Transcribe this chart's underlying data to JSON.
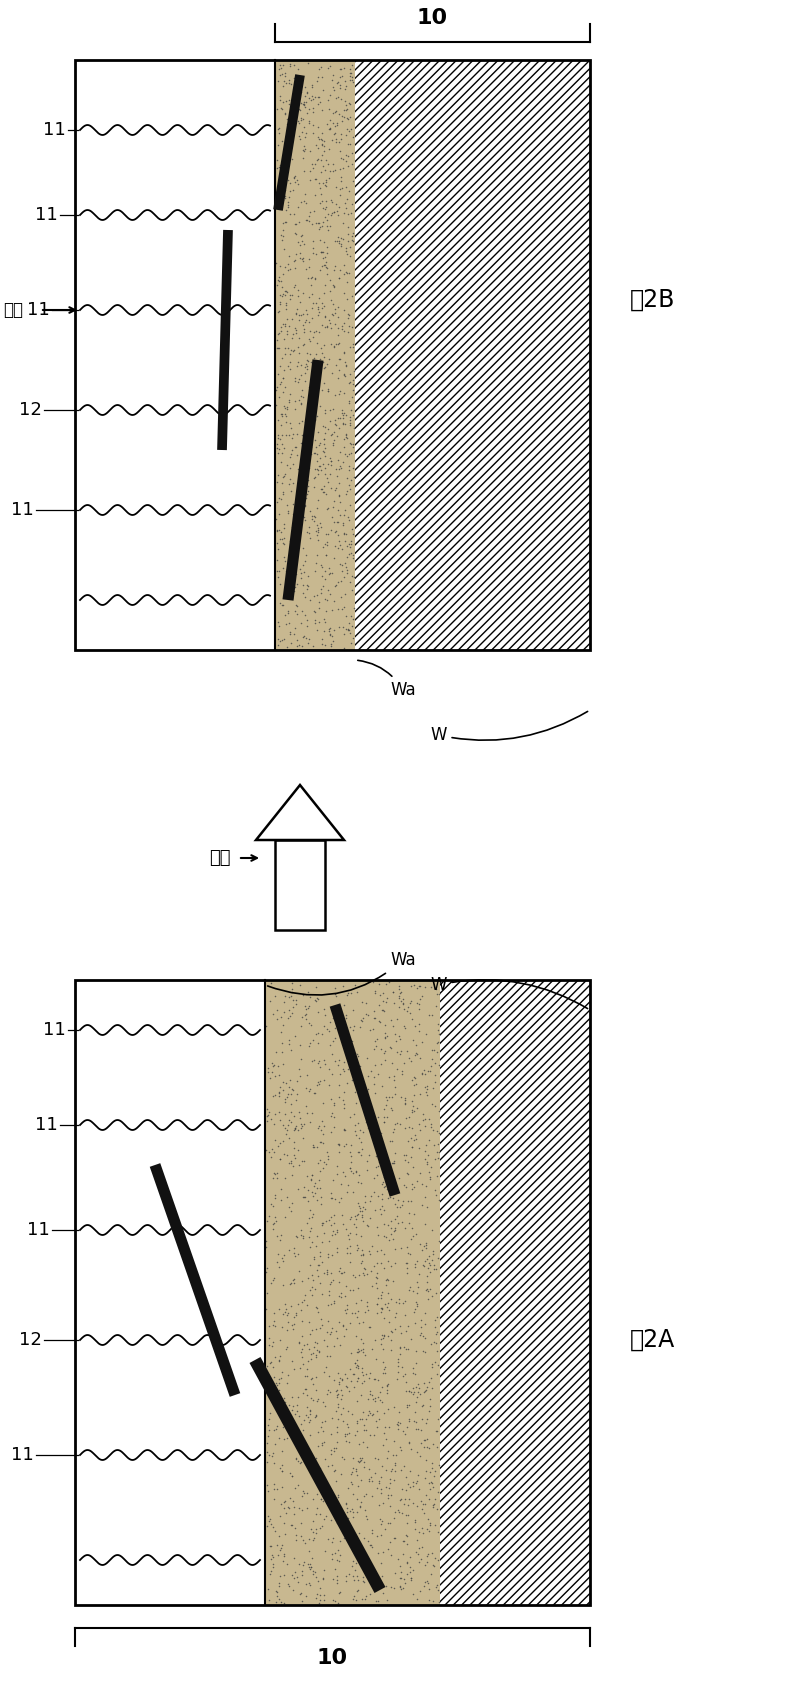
{
  "bg_color": "#ffffff",
  "fig_label_2B": "図2B",
  "fig_label_2A": "図2A",
  "label_10": "10",
  "label_11": "11",
  "label_12": "12",
  "label_Wa": "Wa",
  "label_W": "W",
  "label_dry": "干燥",
  "label_shrink": "收縮"
}
